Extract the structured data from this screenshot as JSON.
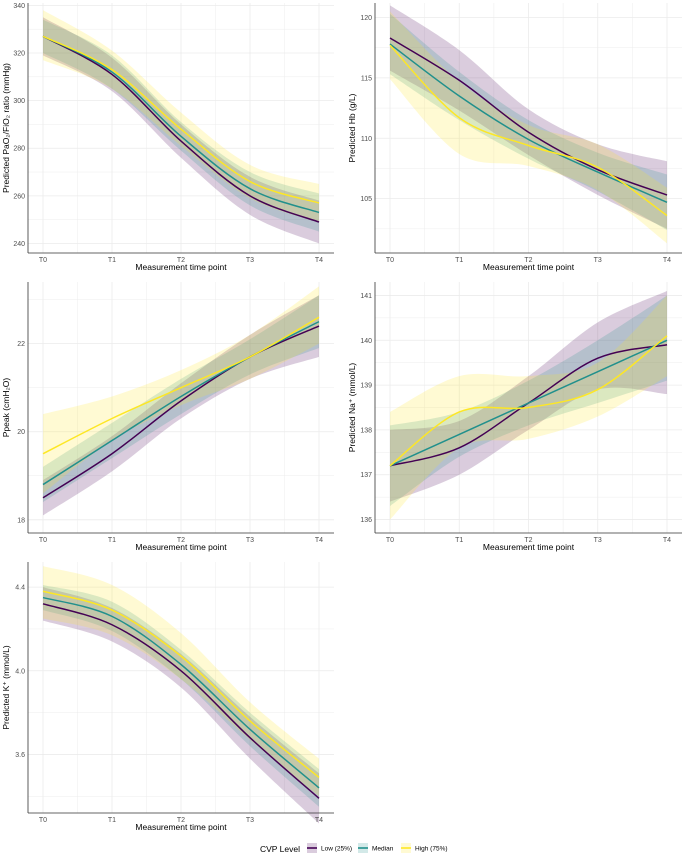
{
  "chart_data": [
    {
      "type": "line",
      "id": "pao2",
      "title": "",
      "xlabel": "Measurement time point",
      "ylabel": "Predicted PaO₂/FiO₂ ratio (mmHg)",
      "categories": [
        "T0",
        "T1",
        "T2",
        "T3",
        "T4"
      ],
      "ylim": [
        236,
        341
      ],
      "yticks": [
        240,
        260,
        280,
        300,
        320,
        340
      ],
      "series": [
        {
          "name": "Low (25%)",
          "values": [
            327,
            311,
            283,
            260,
            249
          ],
          "lower": [
            319,
            304,
            276,
            252,
            240
          ],
          "upper": [
            335,
            318,
            290,
            268,
            258
          ]
        },
        {
          "name": "Median",
          "values": [
            327,
            312,
            285,
            263,
            253
          ],
          "lower": [
            320,
            305,
            279,
            256,
            245
          ],
          "upper": [
            334,
            319,
            291,
            270,
            261
          ]
        },
        {
          "name": "High (75%)",
          "values": [
            327,
            313,
            288,
            266,
            257
          ],
          "lower": [
            317,
            305,
            281,
            259,
            249
          ],
          "upper": [
            338,
            321,
            295,
            273,
            265
          ]
        }
      ]
    },
    {
      "type": "line",
      "id": "hb",
      "title": "",
      "xlabel": "Measurement time point",
      "ylabel": "Predicted Hb (g/L)",
      "categories": [
        "T0",
        "T1",
        "T2",
        "T3",
        "T4"
      ],
      "ylim": [
        100.5,
        121.2
      ],
      "yticks": [
        105,
        110,
        115,
        120
      ],
      "series": [
        {
          "name": "Low (25%)",
          "values": [
            118.3,
            114.8,
            110.5,
            107.4,
            105.3
          ],
          "lower": [
            115.6,
            112.3,
            108.6,
            105.3,
            102.5
          ],
          "upper": [
            121.0,
            117.3,
            112.4,
            109.5,
            108.1
          ]
        },
        {
          "name": "Median",
          "values": [
            117.8,
            113.5,
            109.9,
            107.2,
            104.7
          ],
          "lower": [
            115.3,
            111.5,
            108.3,
            105.6,
            102.4
          ],
          "upper": [
            120.3,
            115.5,
            111.5,
            108.8,
            107.0
          ]
        },
        {
          "name": "High (75%)",
          "values": [
            117.7,
            111.7,
            109.4,
            107.6,
            103.6
          ],
          "lower": [
            114.9,
            108.7,
            107.7,
            105.7,
            101.3
          ],
          "upper": [
            120.5,
            114.7,
            111.1,
            109.5,
            105.9
          ]
        }
      ]
    },
    {
      "type": "line",
      "id": "ppeak",
      "title": "",
      "xlabel": "Measurement time point",
      "ylabel": "Ppeak (cmH₂O)",
      "categories": [
        "T0",
        "T1",
        "T2",
        "T3",
        "T4"
      ],
      "ylim": [
        17.7,
        23.4
      ],
      "yticks": [
        18,
        20,
        22
      ],
      "series": [
        {
          "name": "Low (25%)",
          "values": [
            18.5,
            19.5,
            20.7,
            21.7,
            22.4
          ],
          "lower": [
            18.1,
            19.1,
            20.3,
            21.2,
            21.7
          ],
          "upper": [
            18.9,
            19.9,
            21.1,
            22.2,
            23.1
          ]
        },
        {
          "name": "Median",
          "values": [
            18.8,
            19.8,
            20.8,
            21.7,
            22.5
          ],
          "lower": [
            18.4,
            19.4,
            20.4,
            21.3,
            21.9
          ],
          "upper": [
            19.2,
            20.2,
            21.2,
            22.1,
            23.1
          ]
        },
        {
          "name": "High (75%)",
          "values": [
            19.5,
            20.3,
            21.0,
            21.7,
            22.6
          ],
          "lower": [
            18.6,
            19.8,
            20.6,
            21.2,
            22.0
          ],
          "upper": [
            20.4,
            20.8,
            21.4,
            22.2,
            23.3
          ]
        }
      ]
    },
    {
      "type": "line",
      "id": "na",
      "title": "",
      "xlabel": "Measurement time point",
      "ylabel": "Predicted Na⁺ (mmol/L)",
      "categories": [
        "T0",
        "T1",
        "T2",
        "T3",
        "T4"
      ],
      "ylim": [
        135.7,
        141.3
      ],
      "yticks": [
        136,
        137,
        138,
        139,
        140,
        141
      ],
      "series": [
        {
          "name": "Low (25%)",
          "values": [
            137.2,
            137.6,
            138.6,
            139.6,
            139.9
          ],
          "lower": [
            136.4,
            137.0,
            138.0,
            138.9,
            138.8
          ],
          "upper": [
            138.0,
            138.2,
            139.2,
            140.4,
            141.1
          ]
        },
        {
          "name": "Median",
          "values": [
            137.2,
            137.9,
            138.6,
            139.3,
            140.0
          ],
          "lower": [
            136.3,
            137.4,
            138.1,
            138.6,
            139.1
          ],
          "upper": [
            138.1,
            138.4,
            139.1,
            140.0,
            141.0
          ]
        },
        {
          "name": "High (75%)",
          "values": [
            137.2,
            138.4,
            138.5,
            138.9,
            140.1
          ],
          "lower": [
            136.0,
            137.6,
            137.8,
            138.3,
            139.2
          ],
          "upper": [
            138.4,
            139.2,
            139.2,
            139.5,
            141.0
          ]
        }
      ]
    },
    {
      "type": "line",
      "id": "k",
      "title": "",
      "xlabel": "Measurement time point",
      "ylabel": "Predicted K⁺ (mmol/L)",
      "categories": [
        "T0",
        "T1",
        "T2",
        "T3",
        "T4"
      ],
      "ylim": [
        3.32,
        4.52
      ],
      "yticks": [
        3.6,
        4.0,
        4.4
      ],
      "series": [
        {
          "name": "Low (25%)",
          "values": [
            4.32,
            4.22,
            4.0,
            3.68,
            3.39
          ],
          "lower": [
            4.24,
            4.14,
            3.92,
            3.58,
            3.27
          ],
          "upper": [
            4.4,
            4.3,
            4.08,
            3.78,
            3.51
          ]
        },
        {
          "name": "Median",
          "values": [
            4.35,
            4.26,
            4.03,
            3.72,
            3.44
          ],
          "lower": [
            4.29,
            4.19,
            3.96,
            3.64,
            3.35
          ],
          "upper": [
            4.41,
            4.33,
            4.1,
            3.8,
            3.53
          ]
        },
        {
          "name": "High (75%)",
          "values": [
            4.38,
            4.29,
            4.07,
            3.76,
            3.49
          ],
          "lower": [
            4.25,
            4.17,
            3.96,
            3.67,
            3.4
          ],
          "upper": [
            4.5,
            4.41,
            4.18,
            3.85,
            3.58
          ]
        }
      ]
    }
  ],
  "legend": {
    "title": "CVP Level",
    "entries": [
      {
        "name": "Low (25%)",
        "color": "#440154"
      },
      {
        "name": "Median",
        "color": "#21908C"
      },
      {
        "name": "High (75%)",
        "color": "#FDE725"
      }
    ]
  },
  "colors": {
    "low_line": "#440154",
    "median_line": "#21908C",
    "high_line": "#FDE725",
    "low_ribbon": "#440154",
    "median_ribbon": "#21908C",
    "high_ribbon": "#FDE725",
    "grid": "#EBEBEB",
    "axis": "#333333"
  }
}
